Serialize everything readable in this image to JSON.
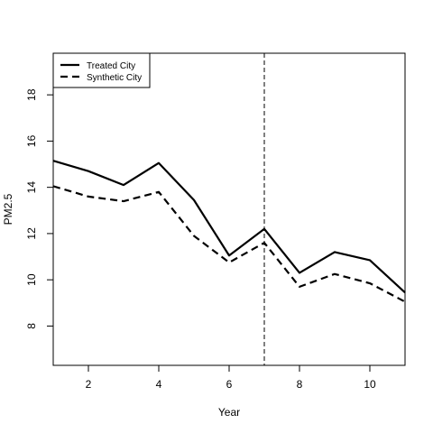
{
  "chart_data": {
    "type": "line",
    "title": "",
    "xlabel": "Year",
    "ylabel": "PM2.5",
    "xlim": [
      1,
      11
    ],
    "ylim": [
      6.3,
      19.8
    ],
    "x_ticks": [
      2,
      4,
      6,
      8,
      10
    ],
    "y_ticks": [
      8,
      10,
      12,
      14,
      16,
      18
    ],
    "x": [
      1,
      2,
      3,
      4,
      5,
      6,
      7,
      8,
      9,
      10,
      11
    ],
    "series": [
      {
        "name": "Treated City",
        "style": "solid",
        "color": "#000000",
        "values": [
          15.15,
          14.7,
          14.1,
          15.05,
          13.45,
          11.05,
          12.2,
          10.3,
          11.2,
          10.85,
          9.45
        ]
      },
      {
        "name": "Synthetic City",
        "style": "dashed",
        "color": "#000000",
        "values": [
          14.05,
          13.6,
          13.4,
          13.8,
          11.9,
          10.75,
          11.6,
          9.7,
          10.25,
          9.85,
          9.05
        ]
      }
    ],
    "vline": {
      "x": 7,
      "style": "dashed"
    },
    "legend_position": "top-left",
    "grid": false
  }
}
